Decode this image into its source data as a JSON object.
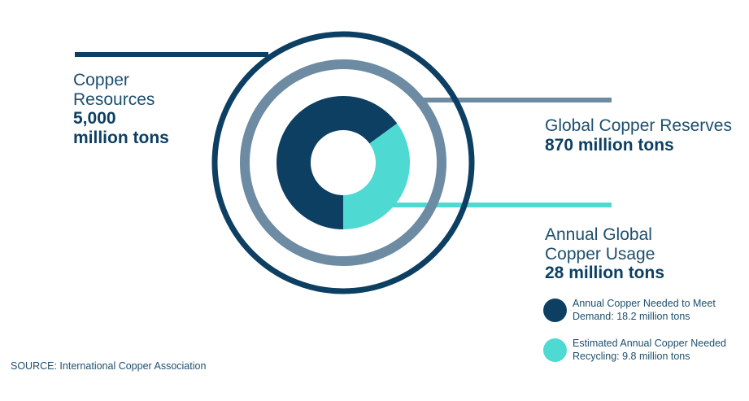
{
  "chart_data": {
    "type": "nested-circle",
    "labels": [
      {
        "name": "Copper\nResources",
        "value": "5,000\nmillion tons",
        "color": "#0d3f63"
      },
      {
        "name": "Global Copper Reserves",
        "value": "870 million tons",
        "color": "#6d8ba3"
      },
      {
        "name": "Annual Global\nCopper Usage",
        "value": "28 million tons",
        "color": "#4ed9d3"
      }
    ],
    "donut": {
      "values": [
        18.2,
        9.8
      ],
      "labels": [
        "Annual Copper Needed to Meet Demand: 18.2 million tons",
        "Estimated Annual Copper Needed Recycling: 9.8 million tons"
      ],
      "colors": [
        "#0d3f63",
        "#4ed9d3"
      ]
    }
  },
  "legend": [
    {
      "line1": "Annual Copper Needed to Meet",
      "line2": "Demand: 18.2 million tons",
      "color": "#0d3f63"
    },
    {
      "line1": "Estimated Annual Copper Needed",
      "line2": "Recycling: 9.8 million tons",
      "color": "#4ed9d3"
    }
  ],
  "labels": {
    "resources_name": "Copper\nResources",
    "resources_value": "5,000\nmillion tons",
    "reserves_name": "Global Copper Reserves",
    "reserves_value": "870 million tons",
    "usage_name": "Annual Global\nCopper Usage",
    "usage_value": "28 million tons"
  },
  "source": "SOURCE: International Copper Association"
}
